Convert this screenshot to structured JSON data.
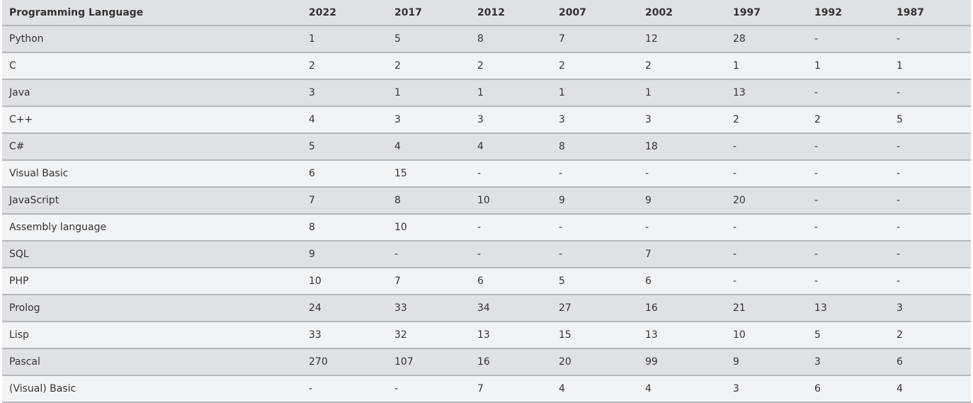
{
  "table": {
    "headers": [
      "Programming Language",
      "2022",
      "2017",
      "2012",
      "2007",
      "2002",
      "1997",
      "1992",
      "1987"
    ],
    "rows": [
      [
        "Python",
        "1",
        "5",
        "8",
        "7",
        "12",
        "28",
        "-",
        "-"
      ],
      [
        "C",
        "2",
        "2",
        "2",
        "2",
        "2",
        "1",
        "1",
        "1"
      ],
      [
        "Java",
        "3",
        "1",
        "1",
        "1",
        "1",
        "13",
        "-",
        "-"
      ],
      [
        "C++",
        "4",
        "3",
        "3",
        "3",
        "3",
        "2",
        "2",
        "5"
      ],
      [
        "C#",
        "5",
        "4",
        "4",
        "8",
        "18",
        "-",
        "-",
        "-"
      ],
      [
        "Visual Basic",
        "6",
        "15",
        "-",
        "-",
        "-",
        "-",
        "-",
        "-"
      ],
      [
        "JavaScript",
        "7",
        "8",
        "10",
        "9",
        "9",
        "20",
        "-",
        "-"
      ],
      [
        "Assembly language",
        "8",
        "10",
        "-",
        "-",
        "-",
        "-",
        "-",
        "-"
      ],
      [
        "SQL",
        "9",
        "-",
        "-",
        "-",
        "7",
        "-",
        "-",
        "-"
      ],
      [
        "PHP",
        "10",
        "7",
        "6",
        "5",
        "6",
        "-",
        "-",
        "-"
      ],
      [
        "Prolog",
        "24",
        "33",
        "34",
        "27",
        "16",
        "21",
        "13",
        "3"
      ],
      [
        "Lisp",
        "33",
        "32",
        "13",
        "15",
        "13",
        "10",
        "5",
        "2"
      ],
      [
        "Pascal",
        "270",
        "107",
        "16",
        "20",
        "99",
        "9",
        "3",
        "6"
      ],
      [
        "(Visual) Basic",
        "-",
        "-",
        "7",
        "4",
        "4",
        "3",
        "6",
        "4"
      ]
    ]
  }
}
